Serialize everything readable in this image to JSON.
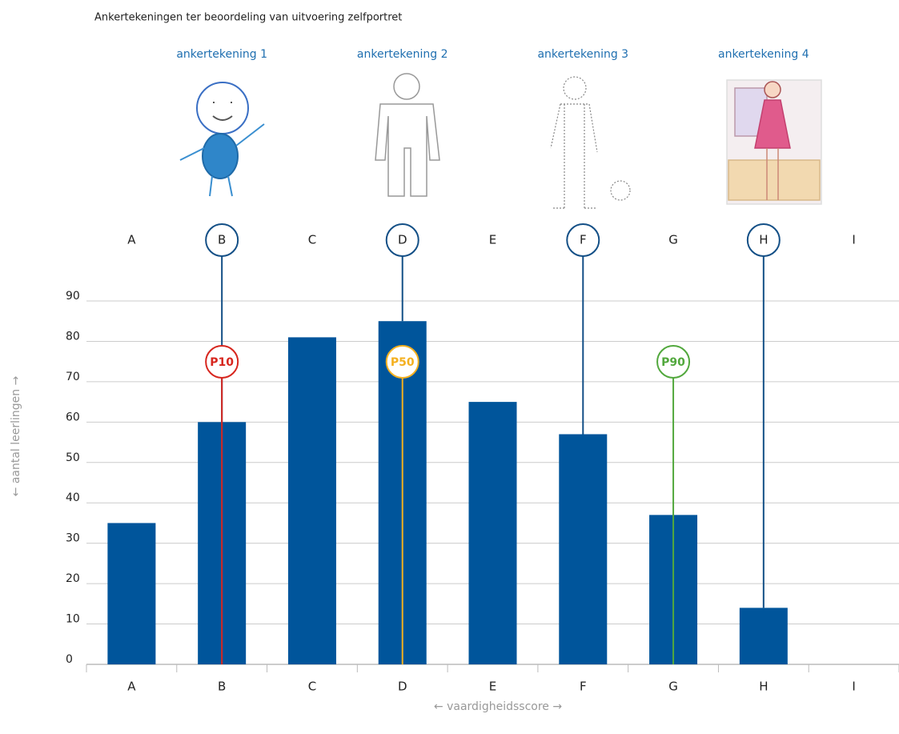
{
  "chart_data": {
    "type": "bar",
    "title": "Ankertekeningen ter beoordeling van uitvoering zelfportret",
    "x_label": "← vaardigheidsscore →",
    "y_label": "← aantal leerlingen →",
    "categories": [
      "A",
      "B",
      "C",
      "D",
      "E",
      "F",
      "G",
      "H",
      "I"
    ],
    "values": [
      35,
      60,
      81,
      85,
      65,
      57,
      37,
      14,
      0
    ],
    "color": "#00559b",
    "ylim": [
      0,
      90
    ],
    "yticks": [
      0,
      10,
      20,
      30,
      40,
      50,
      60,
      70,
      80,
      90
    ],
    "grid": true,
    "anchors": [
      {
        "label": "ankertekening 1",
        "category": "B"
      },
      {
        "label": "ankertekening 2",
        "category": "D"
      },
      {
        "label": "ankertekening 3",
        "category": "F"
      },
      {
        "label": "ankertekening 4",
        "category": "H"
      }
    ],
    "anchor_color": "#134f86",
    "percentiles": [
      {
        "label": "P10",
        "category": "B",
        "color": "#d7261e"
      },
      {
        "label": "P50",
        "category": "D",
        "color": "#f4b01f"
      },
      {
        "label": "P90",
        "category": "G",
        "color": "#52a83d"
      }
    ]
  }
}
